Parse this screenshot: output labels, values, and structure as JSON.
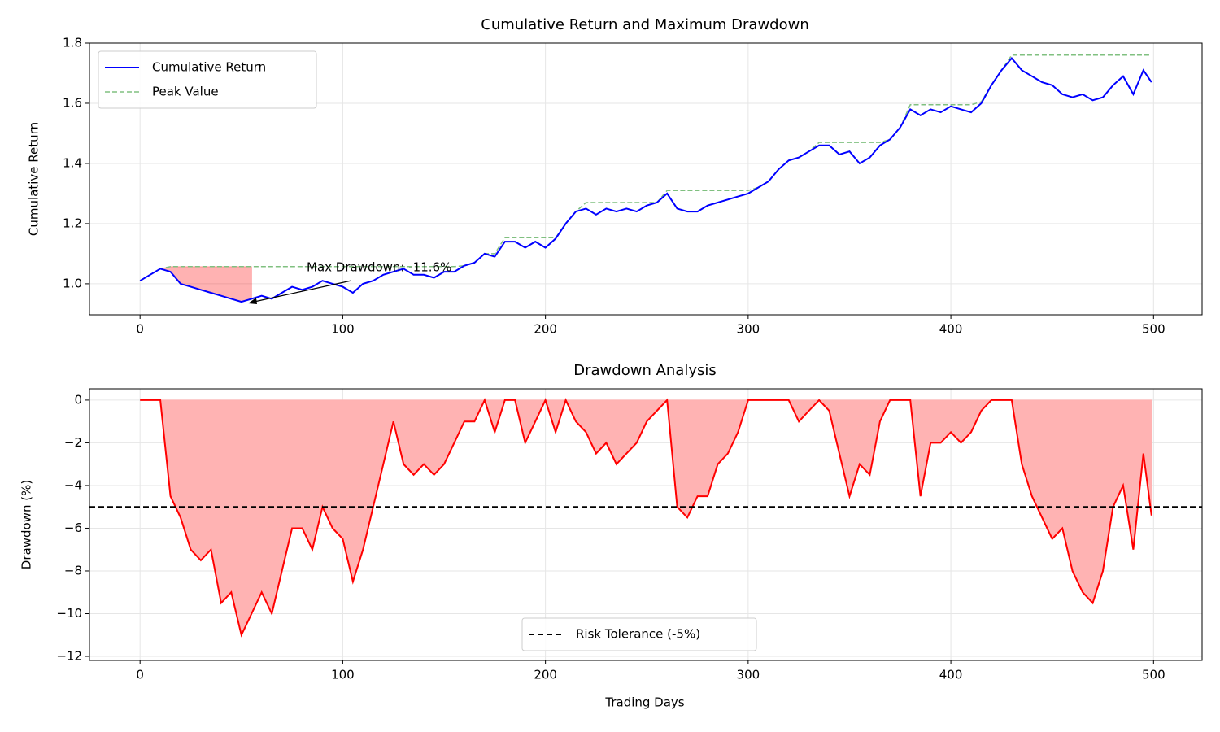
{
  "chart_data": [
    {
      "type": "line",
      "title": "Cumulative Return and Maximum Drawdown",
      "ylabel": "Cumulative Return",
      "x": [
        0,
        5,
        10,
        15,
        20,
        25,
        30,
        35,
        40,
        45,
        50,
        55,
        60,
        65,
        70,
        75,
        80,
        85,
        90,
        95,
        100,
        105,
        110,
        115,
        120,
        125,
        130,
        135,
        140,
        145,
        150,
        155,
        160,
        165,
        170,
        175,
        180,
        185,
        190,
        195,
        200,
        205,
        210,
        215,
        220,
        225,
        230,
        235,
        240,
        245,
        250,
        255,
        260,
        265,
        270,
        275,
        280,
        285,
        290,
        295,
        300,
        305,
        310,
        315,
        320,
        325,
        330,
        335,
        340,
        345,
        350,
        355,
        360,
        365,
        370,
        375,
        380,
        385,
        390,
        395,
        400,
        405,
        410,
        415,
        420,
        425,
        430,
        435,
        440,
        445,
        450,
        455,
        460,
        465,
        470,
        475,
        480,
        485,
        490,
        495,
        499
      ],
      "series": [
        {
          "name": "Cumulative Return",
          "color": "#0000ff",
          "style": "solid",
          "values": [
            1.01,
            1.03,
            1.05,
            1.04,
            1.0,
            0.99,
            0.98,
            0.97,
            0.96,
            0.95,
            0.94,
            0.95,
            0.96,
            0.95,
            0.97,
            0.99,
            0.98,
            0.99,
            1.01,
            1.0,
            0.99,
            0.97,
            1.0,
            1.01,
            1.03,
            1.04,
            1.05,
            1.03,
            1.03,
            1.02,
            1.04,
            1.04,
            1.06,
            1.07,
            1.1,
            1.09,
            1.14,
            1.14,
            1.12,
            1.14,
            1.12,
            1.15,
            1.2,
            1.24,
            1.25,
            1.23,
            1.25,
            1.24,
            1.25,
            1.24,
            1.26,
            1.27,
            1.3,
            1.25,
            1.24,
            1.24,
            1.26,
            1.27,
            1.28,
            1.29,
            1.3,
            1.32,
            1.34,
            1.38,
            1.41,
            1.42,
            1.44,
            1.46,
            1.46,
            1.43,
            1.44,
            1.4,
            1.42,
            1.46,
            1.48,
            1.52,
            1.58,
            1.56,
            1.58,
            1.57,
            1.59,
            1.58,
            1.57,
            1.6,
            1.66,
            1.71,
            1.75,
            1.71,
            1.69,
            1.67,
            1.66,
            1.63,
            1.62,
            1.63,
            1.61,
            1.62,
            1.66,
            1.69,
            1.63,
            1.71,
            1.67
          ]
        },
        {
          "name": "Peak Value",
          "color": "#80c080",
          "style": "dashed",
          "values": [
            1.01,
            1.03,
            1.05,
            1.057,
            1.057,
            1.057,
            1.057,
            1.057,
            1.057,
            1.057,
            1.057,
            1.057,
            1.057,
            1.057,
            1.057,
            1.057,
            1.057,
            1.057,
            1.057,
            1.057,
            1.057,
            1.057,
            1.057,
            1.057,
            1.057,
            1.057,
            1.057,
            1.057,
            1.057,
            1.057,
            1.057,
            1.057,
            1.06,
            1.07,
            1.1,
            1.1,
            1.153,
            1.153,
            1.153,
            1.153,
            1.153,
            1.153,
            1.2,
            1.24,
            1.27,
            1.27,
            1.27,
            1.27,
            1.27,
            1.27,
            1.27,
            1.27,
            1.31,
            1.31,
            1.31,
            1.31,
            1.31,
            1.31,
            1.31,
            1.31,
            1.31,
            1.32,
            1.34,
            1.38,
            1.41,
            1.42,
            1.44,
            1.47,
            1.47,
            1.47,
            1.47,
            1.47,
            1.47,
            1.47,
            1.48,
            1.52,
            1.595,
            1.595,
            1.595,
            1.595,
            1.595,
            1.595,
            1.595,
            1.605,
            1.66,
            1.71,
            1.76,
            1.76,
            1.76,
            1.76,
            1.76,
            1.76,
            1.76,
            1.76,
            1.76,
            1.76,
            1.76,
            1.76,
            1.76,
            1.76,
            1.76
          ]
        }
      ],
      "annotation": "Max Drawdown: -11.6%",
      "xlim": [
        -24.95,
        523.95
      ],
      "xticks": [
        0,
        100,
        200,
        300,
        400,
        500
      ],
      "ylim": [
        0.897,
        1.8
      ],
      "yticks": [
        {
          "value": 1,
          "label": "1.0"
        },
        1.2,
        1.4,
        1.6,
        1.8
      ],
      "grid": true,
      "legend": "upper left"
    },
    {
      "type": "area",
      "title": "Drawdown Analysis",
      "xlabel": "Trading Days",
      "ylabel": "Drawdown (%)",
      "x": [
        0,
        5,
        10,
        15,
        20,
        25,
        30,
        35,
        40,
        45,
        50,
        55,
        60,
        65,
        70,
        75,
        80,
        85,
        90,
        95,
        100,
        105,
        110,
        115,
        120,
        125,
        130,
        135,
        140,
        145,
        150,
        155,
        160,
        165,
        170,
        175,
        180,
        185,
        190,
        195,
        200,
        205,
        210,
        215,
        220,
        225,
        230,
        235,
        240,
        245,
        250,
        255,
        260,
        265,
        270,
        275,
        280,
        285,
        290,
        295,
        300,
        305,
        310,
        315,
        320,
        325,
        330,
        335,
        340,
        345,
        350,
        355,
        360,
        365,
        370,
        375,
        380,
        385,
        390,
        395,
        400,
        405,
        410,
        415,
        420,
        425,
        430,
        435,
        440,
        445,
        450,
        455,
        460,
        465,
        470,
        475,
        480,
        485,
        490,
        495,
        499
      ],
      "series": [
        {
          "name": "Drawdown",
          "color": "#ff0000",
          "fill": "#ffb3b3",
          "values": [
            0,
            0,
            0,
            -4.5,
            -5.5,
            -7,
            -7.5,
            -7,
            -9.5,
            -9,
            -11,
            -10,
            -9,
            -10,
            -8,
            -6,
            -6,
            -7,
            -5,
            -6,
            -6.5,
            -8.5,
            -7,
            -5,
            -3,
            -1,
            -3,
            -3.5,
            -3,
            -3.5,
            -3,
            -2,
            -1,
            -1,
            0,
            -1.5,
            0,
            0,
            -2,
            -1,
            0,
            -1.5,
            0,
            -1,
            -1.5,
            -2.5,
            -2,
            -3,
            -2.5,
            -2,
            -1,
            -0.5,
            0,
            -5,
            -5.5,
            -4.5,
            -4.5,
            -3,
            -2.5,
            -1.5,
            0,
            0,
            0,
            0,
            0,
            -1,
            -0.5,
            0,
            -0.5,
            -2.5,
            -4.5,
            -3,
            -3.5,
            -1,
            0,
            0,
            0,
            -4.5,
            -2,
            -2,
            -1.5,
            -2,
            -1.5,
            -0.5,
            0,
            0,
            0,
            -3,
            -4.5,
            -5.5,
            -6.5,
            -6,
            -8,
            -9,
            -9.5,
            -8,
            -5,
            -4,
            -7,
            -2.5,
            -5.4
          ]
        }
      ],
      "hlines": [
        {
          "name": "Risk Tolerance (-5%)",
          "value": -5,
          "color": "#000000",
          "style": "dashed"
        }
      ],
      "xlim": [
        -24.95,
        523.95
      ],
      "xticks": [
        0,
        100,
        200,
        300,
        400,
        500
      ],
      "ylim": [
        -12.19,
        0.53
      ],
      "yticks": [
        {
          "value": -12,
          "label": "−12"
        },
        {
          "value": -10,
          "label": "−10"
        },
        {
          "value": -8,
          "label": "−8"
        },
        {
          "value": -6,
          "label": "−6"
        },
        {
          "value": -4,
          "label": "−4"
        },
        {
          "value": -2,
          "label": "−2"
        },
        0
      ],
      "grid": true,
      "legend": "lower center"
    }
  ]
}
